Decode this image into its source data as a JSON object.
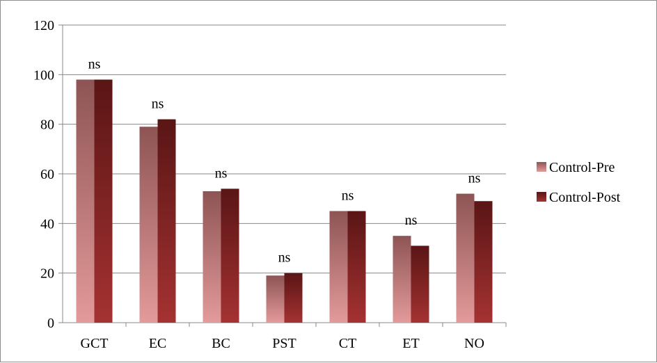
{
  "chart_data": {
    "type": "bar",
    "title": "",
    "xlabel": "",
    "ylabel": "",
    "ylim": [
      0,
      120
    ],
    "yticks": [
      0,
      20,
      40,
      60,
      80,
      100,
      120
    ],
    "grid": true,
    "legend_position": "right",
    "categories": [
      "GCT",
      "EC",
      "BC",
      "PST",
      "CT",
      "ET",
      "NO"
    ],
    "series": [
      {
        "name": "Control-Pre",
        "values": [
          98,
          79,
          53,
          19,
          45,
          35,
          52
        ],
        "color_top": "#8e5454",
        "color_bottom": "#e39a9a"
      },
      {
        "name": "Control-Post",
        "values": [
          98,
          82,
          54,
          20,
          45,
          31,
          49
        ],
        "color_top": "#5a1515",
        "color_bottom": "#a53232"
      }
    ],
    "annotations": [
      "ns",
      "ns",
      "ns",
      "ns",
      "ns",
      "ns",
      "ns"
    ]
  }
}
